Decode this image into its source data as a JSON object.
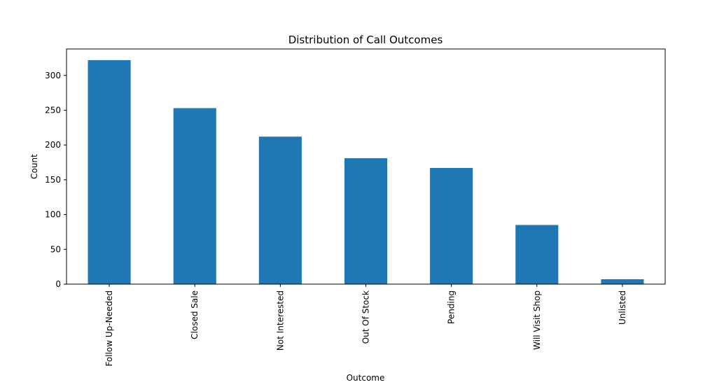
{
  "chart_data": {
    "type": "bar",
    "title": "Distribution of Call Outcomes",
    "xlabel": "Outcome",
    "ylabel": "Count",
    "categories": [
      "Follow Up-Needed",
      "Closed Sale",
      "Not Interested",
      "Out Of Stock",
      "Pending",
      "Will Visit Shop",
      "Unlisted"
    ],
    "values": [
      322,
      253,
      212,
      181,
      167,
      85,
      7
    ],
    "ylim": [
      0,
      338
    ],
    "yticks": [
      0,
      50,
      100,
      150,
      200,
      250,
      300
    ],
    "bar_color": "#1f77b4",
    "grid": false,
    "legend": "none"
  }
}
